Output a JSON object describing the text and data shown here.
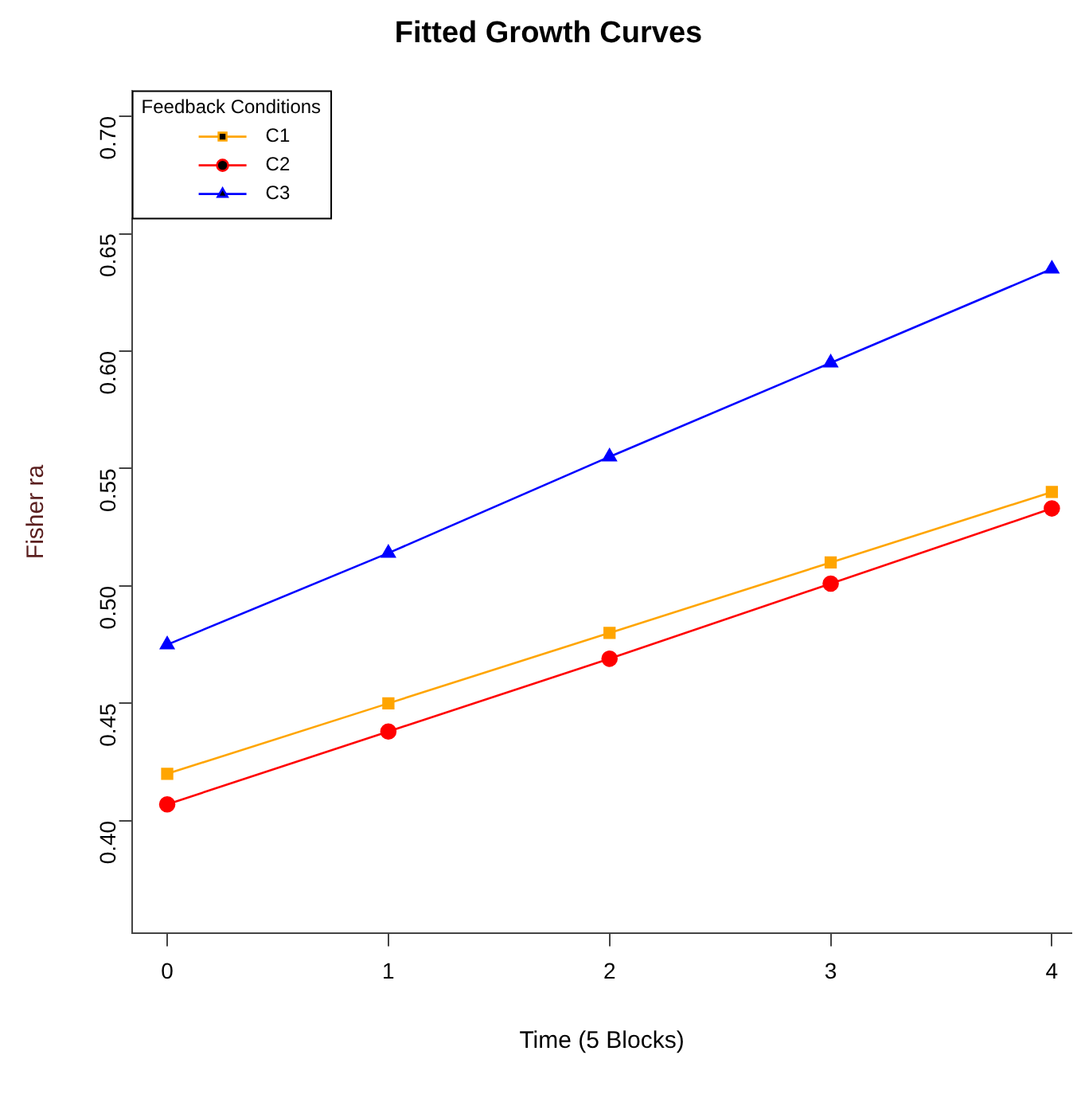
{
  "chart_data": {
    "type": "line",
    "title": "Fitted Growth Curves",
    "xlabel": "Time (5 Blocks)",
    "ylabel": "Fisher ra",
    "legend_title": "Feedback Conditions",
    "x": [
      0,
      1,
      2,
      3,
      4
    ],
    "series": [
      {
        "name": "C1",
        "color": "#ffa500",
        "marker": "square",
        "values": [
          0.42,
          0.45,
          0.48,
          0.51,
          0.54
        ]
      },
      {
        "name": "C2",
        "color": "#ff0000",
        "marker": "circle",
        "values": [
          0.407,
          0.438,
          0.469,
          0.501,
          0.533
        ]
      },
      {
        "name": "C3",
        "color": "#0000ff",
        "marker": "triangle",
        "values": [
          0.475,
          0.514,
          0.555,
          0.595,
          0.635
        ]
      }
    ],
    "xlim": [
      -0.16,
      4.09
    ],
    "xticks": [
      0,
      1,
      2,
      3,
      4
    ],
    "ylim": [
      0.352,
      0.711
    ],
    "yticks": [
      {
        "value": 0.4,
        "label": "0.40"
      },
      {
        "value": 0.45,
        "label": "0.45"
      },
      {
        "value": 0.5,
        "label": "0.50"
      },
      {
        "value": 0.55,
        "label": "0.55"
      },
      {
        "value": 0.6,
        "label": "0.60"
      },
      {
        "value": 0.65,
        "label": "0.65"
      },
      {
        "value": 0.7,
        "label": "0.70"
      }
    ],
    "grid": false,
    "legend": "top left",
    "line_style": "solid"
  }
}
